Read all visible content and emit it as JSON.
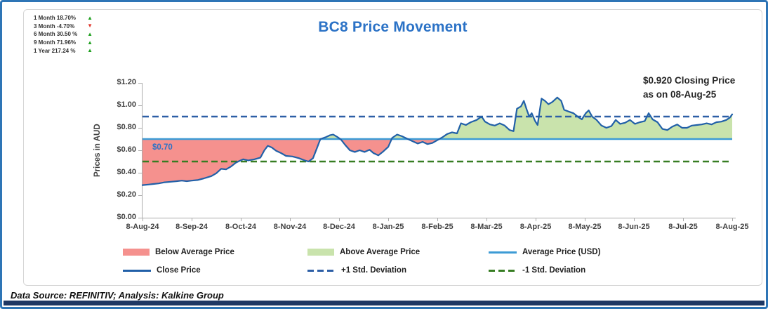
{
  "title": "BC8 Price Movement",
  "annotation": {
    "line1": "$0.920 Closing Price",
    "line2": "as on 08-Aug-25"
  },
  "footer": "Data Source: REFINITIV; Analysis: Kalkine Group",
  "stats": [
    {
      "text": "1 Month 18.70%",
      "direction": "up"
    },
    {
      "text": "3 Month -4.70%",
      "direction": "down"
    },
    {
      "text": "6 Month 30.50 %",
      "direction": "up"
    },
    {
      "text": "9 Month 71.96%",
      "direction": "up"
    },
    {
      "text": "1 Year 217.24 %",
      "direction": "up"
    }
  ],
  "colors": {
    "title": "#2B72C6",
    "border": "#2E75B6",
    "bottom_bar": "#1F3864",
    "card_border": "#D6D6D6",
    "axis": "#ABABAB",
    "tick_label": "#3F3F3F",
    "close_line": "#2160A8",
    "average_line": "#3D9BD5",
    "plus_std": "#2D5FA6",
    "minus_std": "#377D22",
    "below_fill": "#F5918E",
    "above_fill": "#C9E3AC",
    "up_arrow": "#21A121",
    "down_arrow": "#E03A30",
    "avg_label": "#2B72C6"
  },
  "legend": {
    "rows": [
      [
        {
          "type": "swatch",
          "color_key": "below_fill",
          "label": "Below Average Price"
        },
        {
          "type": "swatch",
          "color_key": "above_fill",
          "label": "Above Average Price"
        },
        {
          "type": "line",
          "color_key": "average_line",
          "label": "Average Price (USD)"
        }
      ],
      [
        {
          "type": "line",
          "color_key": "close_line",
          "label": "Close Price"
        },
        {
          "type": "dashes",
          "color_key": "plus_std",
          "label": "+1 Std. Deviation"
        },
        {
          "type": "dashes",
          "color_key": "minus_std",
          "label": "-1 Std. Deviation"
        }
      ]
    ]
  },
  "chart_data": {
    "type": "line",
    "title": "BC8 Price Movement",
    "xlabel": "",
    "ylabel": "Prices in AUD",
    "ylim": [
      0,
      1.2
    ],
    "grid": false,
    "legend_position": "bottom",
    "y_tick_labels": [
      "$1.20",
      "$1.00",
      "$0.80",
      "$0.60",
      "$0.40",
      "$0.20",
      "$0.00"
    ],
    "x_tick_labels": [
      "8-Aug-24",
      "8-Sep-24",
      "8-Oct-24",
      "8-Nov-24",
      "8-Dec-24",
      "8-Jan-25",
      "8-Feb-25",
      "8-Mar-25",
      "8-Apr-25",
      "8-May-25",
      "8-Jun-25",
      "8-Jul-25",
      "8-Aug-25"
    ],
    "average_price": 0.7,
    "average_price_label": "$0.70",
    "plus_one_std": 0.9,
    "minus_one_std": 0.5,
    "closing_price": 0.92,
    "closing_date": "08-Aug-25",
    "series_name": "Close Price",
    "close_series_x_unit": "months_since_8-Aug-24",
    "close_series": [
      [
        0,
        0.29
      ],
      [
        0.12,
        0.295
      ],
      [
        0.22,
        0.3
      ],
      [
        0.33,
        0.305
      ],
      [
        0.45,
        0.315
      ],
      [
        0.58,
        0.32
      ],
      [
        0.7,
        0.325
      ],
      [
        0.8,
        0.33
      ],
      [
        0.9,
        0.325
      ],
      [
        1,
        0.33
      ],
      [
        1.12,
        0.335
      ],
      [
        1.25,
        0.35
      ],
      [
        1.4,
        0.37
      ],
      [
        1.5,
        0.395
      ],
      [
        1.6,
        0.435
      ],
      [
        1.7,
        0.43
      ],
      [
        1.8,
        0.455
      ],
      [
        1.9,
        0.49
      ],
      [
        1.97,
        0.505
      ],
      [
        2.05,
        0.52
      ],
      [
        2.15,
        0.51
      ],
      [
        2.28,
        0.52
      ],
      [
        2.4,
        0.535
      ],
      [
        2.48,
        0.6
      ],
      [
        2.55,
        0.64
      ],
      [
        2.63,
        0.625
      ],
      [
        2.72,
        0.595
      ],
      [
        2.82,
        0.575
      ],
      [
        2.92,
        0.55
      ],
      [
        3.05,
        0.545
      ],
      [
        3.18,
        0.53
      ],
      [
        3.3,
        0.51
      ],
      [
        3.38,
        0.5
      ],
      [
        3.47,
        0.53
      ],
      [
        3.55,
        0.62
      ],
      [
        3.62,
        0.7
      ],
      [
        3.72,
        0.715
      ],
      [
        3.82,
        0.735
      ],
      [
        3.88,
        0.74
      ],
      [
        3.96,
        0.72
      ],
      [
        4.04,
        0.695
      ],
      [
        4.12,
        0.65
      ],
      [
        4.22,
        0.6
      ],
      [
        4.32,
        0.585
      ],
      [
        4.42,
        0.6
      ],
      [
        4.52,
        0.585
      ],
      [
        4.62,
        0.605
      ],
      [
        4.7,
        0.575
      ],
      [
        4.8,
        0.555
      ],
      [
        4.9,
        0.59
      ],
      [
        5,
        0.63
      ],
      [
        5.08,
        0.71
      ],
      [
        5.18,
        0.74
      ],
      [
        5.28,
        0.725
      ],
      [
        5.4,
        0.7
      ],
      [
        5.5,
        0.68
      ],
      [
        5.6,
        0.66
      ],
      [
        5.7,
        0.675
      ],
      [
        5.8,
        0.655
      ],
      [
        5.9,
        0.665
      ],
      [
        6,
        0.69
      ],
      [
        6.1,
        0.715
      ],
      [
        6.2,
        0.745
      ],
      [
        6.3,
        0.76
      ],
      [
        6.4,
        0.75
      ],
      [
        6.48,
        0.84
      ],
      [
        6.58,
        0.825
      ],
      [
        6.68,
        0.85
      ],
      [
        6.8,
        0.87
      ],
      [
        6.9,
        0.9
      ],
      [
        6.97,
        0.855
      ],
      [
        7.07,
        0.83
      ],
      [
        7.17,
        0.82
      ],
      [
        7.27,
        0.84
      ],
      [
        7.37,
        0.82
      ],
      [
        7.47,
        0.78
      ],
      [
        7.55,
        0.77
      ],
      [
        7.62,
        0.97
      ],
      [
        7.7,
        0.99
      ],
      [
        7.76,
        1.04
      ],
      [
        7.82,
        0.96
      ],
      [
        7.87,
        0.9
      ],
      [
        7.92,
        0.93
      ],
      [
        7.99,
        0.86
      ],
      [
        8.04,
        0.825
      ],
      [
        8.12,
        1.06
      ],
      [
        8.19,
        1.04
      ],
      [
        8.26,
        1.01
      ],
      [
        8.34,
        1.03
      ],
      [
        8.44,
        1.07
      ],
      [
        8.52,
        1.04
      ],
      [
        8.58,
        0.96
      ],
      [
        8.67,
        0.945
      ],
      [
        8.77,
        0.93
      ],
      [
        8.87,
        0.895
      ],
      [
        8.94,
        0.875
      ],
      [
        9.02,
        0.93
      ],
      [
        9.08,
        0.955
      ],
      [
        9.15,
        0.9
      ],
      [
        9.24,
        0.87
      ],
      [
        9.34,
        0.82
      ],
      [
        9.44,
        0.8
      ],
      [
        9.54,
        0.815
      ],
      [
        9.63,
        0.87
      ],
      [
        9.72,
        0.835
      ],
      [
        9.82,
        0.845
      ],
      [
        9.92,
        0.87
      ],
      [
        10.02,
        0.835
      ],
      [
        10.12,
        0.85
      ],
      [
        10.22,
        0.86
      ],
      [
        10.3,
        0.93
      ],
      [
        10.38,
        0.875
      ],
      [
        10.48,
        0.85
      ],
      [
        10.58,
        0.79
      ],
      [
        10.68,
        0.78
      ],
      [
        10.78,
        0.81
      ],
      [
        10.88,
        0.83
      ],
      [
        10.98,
        0.8
      ],
      [
        11.08,
        0.8
      ],
      [
        11.18,
        0.82
      ],
      [
        11.28,
        0.825
      ],
      [
        11.38,
        0.83
      ],
      [
        11.48,
        0.84
      ],
      [
        11.58,
        0.83
      ],
      [
        11.68,
        0.85
      ],
      [
        11.78,
        0.855
      ],
      [
        11.88,
        0.87
      ],
      [
        11.95,
        0.89
      ],
      [
        12,
        0.92
      ]
    ]
  }
}
